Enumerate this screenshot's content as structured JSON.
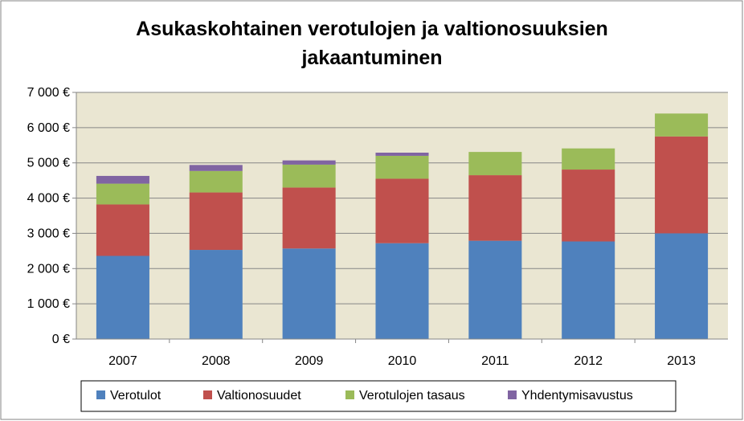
{
  "chart_data": {
    "type": "bar",
    "stacked": true,
    "title": "Asukaskohtainen verotulojen ja valtionosuuksien jakaantuminen",
    "title_lines": [
      "Asukaskohtainen verotulojen ja valtionosuuksien",
      "jakaantuminen"
    ],
    "categories": [
      "2007",
      "2008",
      "2009",
      "2010",
      "2011",
      "2012",
      "2013"
    ],
    "series": [
      {
        "name": "Verotulot",
        "color": "#4F81BD",
        "values": [
          2360,
          2530,
          2570,
          2720,
          2790,
          2770,
          3000
        ]
      },
      {
        "name": "Valtionosuudet",
        "color": "#C0504D",
        "values": [
          1460,
          1630,
          1730,
          1830,
          1860,
          2040,
          2750
        ]
      },
      {
        "name": "Verotulojen tasaus",
        "color": "#9BBB59",
        "values": [
          590,
          610,
          650,
          650,
          660,
          600,
          650
        ]
      },
      {
        "name": "Yhdentymisavustus",
        "color": "#8064A2",
        "values": [
          220,
          170,
          120,
          90,
          0,
          0,
          0
        ]
      }
    ],
    "ylim": [
      0,
      7000
    ],
    "yticks": [
      0,
      1000,
      2000,
      3000,
      4000,
      5000,
      6000,
      7000
    ],
    "ytick_labels": [
      "0 €",
      "1 000 €",
      "2 000 €",
      "3 000 €",
      "4 000 €",
      "5 000 €",
      "6 000 €",
      "7 000 €"
    ],
    "xlabel": "",
    "ylabel": "",
    "grid": true,
    "legend_position": "bottom",
    "plot_background": "#EAE6D2"
  }
}
